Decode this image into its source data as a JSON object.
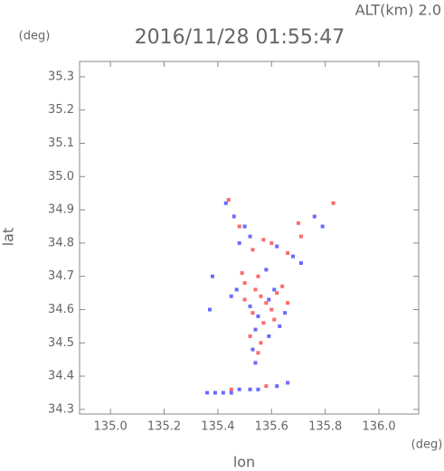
{
  "chart_data": {
    "type": "scatter",
    "title": "2016/11/28 01:55:47",
    "subtitle": "ALT(km) 2.0",
    "x_label": "lon",
    "y_label": "lat",
    "x_unit": "(deg)",
    "y_unit": "(deg)",
    "xlim": [
      134.885,
      136.148
    ],
    "ylim": [
      34.286,
      35.346
    ],
    "xticks": [
      {
        "value": 135.0,
        "label": "135.0"
      },
      135.2,
      135.4,
      135.6,
      135.8,
      {
        "value": 136.0,
        "label": "136.0"
      }
    ],
    "yticks": [
      34.3,
      34.4,
      34.5,
      34.6,
      34.7,
      34.8,
      34.9,
      {
        "value": 35.0,
        "label": "35.0"
      },
      35.1,
      35.2,
      35.3
    ],
    "series": [
      {
        "color": "#ff6a6a",
        "x": [
          135.44,
          135.48,
          135.57,
          135.6,
          135.7,
          135.83,
          135.49,
          135.5,
          135.54,
          135.56,
          135.58,
          135.62,
          135.64,
          135.6,
          135.53,
          135.57,
          135.52,
          135.56,
          135.5,
          135.66,
          135.61,
          135.55,
          135.71,
          135.55,
          135.66,
          135.53,
          135.45,
          135.58
        ],
        "y": [
          34.93,
          34.85,
          34.81,
          34.8,
          34.86,
          34.92,
          34.71,
          34.68,
          34.66,
          34.64,
          34.62,
          34.65,
          34.67,
          34.6,
          34.59,
          34.56,
          34.52,
          34.5,
          34.63,
          34.62,
          34.57,
          34.47,
          34.82,
          34.7,
          34.77,
          34.78,
          34.36,
          34.37
        ]
      },
      {
        "color": "#6a6aff",
        "x": [
          135.43,
          135.46,
          135.5,
          135.48,
          135.52,
          135.62,
          135.68,
          135.76,
          135.79,
          135.47,
          135.45,
          135.52,
          135.55,
          135.59,
          135.61,
          135.65,
          135.54,
          135.59,
          135.53,
          135.54,
          135.38,
          135.37,
          135.36,
          135.39,
          135.42,
          135.45,
          135.48,
          135.52,
          135.55,
          135.62,
          135.66,
          135.71,
          135.58,
          135.63
        ],
        "y": [
          34.92,
          34.88,
          34.85,
          34.8,
          34.82,
          34.79,
          34.76,
          34.88,
          34.85,
          34.66,
          34.64,
          34.61,
          34.58,
          34.63,
          34.66,
          34.59,
          34.54,
          34.52,
          34.48,
          34.44,
          34.7,
          34.6,
          34.35,
          34.35,
          34.35,
          34.35,
          34.36,
          34.36,
          34.36,
          34.37,
          34.38,
          34.74,
          34.72,
          34.55
        ]
      }
    ]
  }
}
